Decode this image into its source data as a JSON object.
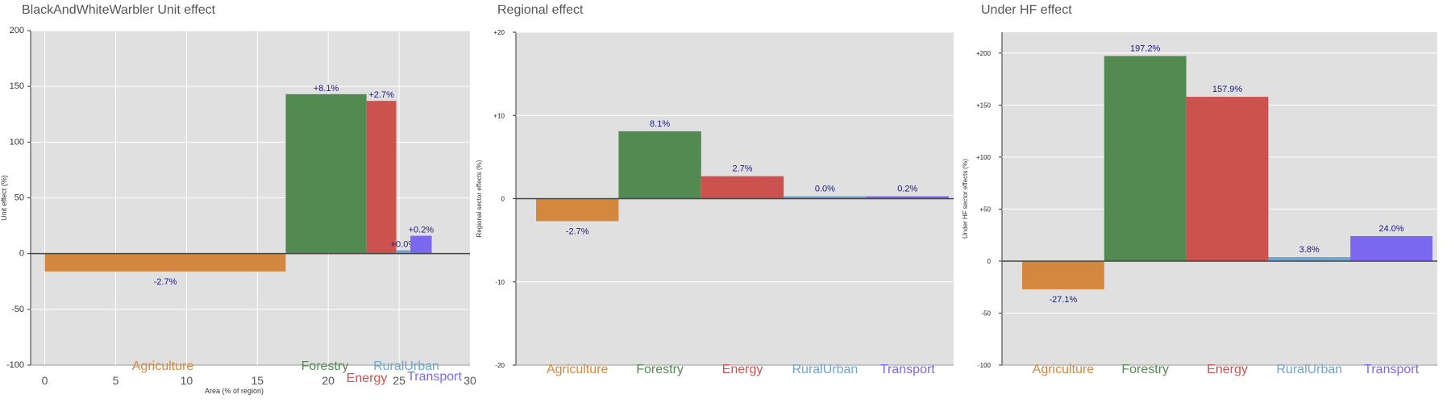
{
  "panels": {
    "unit": {
      "title": "BlackAndWhiteWarbler Unit effect"
    },
    "regional": {
      "title": "Regional effect"
    },
    "underhf": {
      "title": "Under HF effect"
    }
  },
  "colors": {
    "Agriculture": "#d4883f",
    "Forestry": "#528a52",
    "Energy": "#cc5250",
    "RuralUrban": "#6fa4d0",
    "Transport": "#7b68ee",
    "panel_bg": "#e0e0e0",
    "grid": "#ffffff",
    "value_label": "#1a1a7a",
    "axis_text": "#555555"
  },
  "chart_data": [
    {
      "type": "bar",
      "title": "BlackAndWhiteWarbler Unit effect",
      "xlabel": "Area (% of region)",
      "ylabel": "Unit effect (%)",
      "xlim": [
        -1,
        30
      ],
      "ylim": [
        -100,
        200
      ],
      "xticks": [
        0,
        5,
        10,
        15,
        20,
        25,
        30
      ],
      "yticks": [
        -100,
        -50,
        0,
        50,
        100,
        150,
        200
      ],
      "ytick_labels": [
        "-100",
        "-50",
        "0",
        "50",
        "100",
        "150",
        "200"
      ],
      "grid": true,
      "bars": [
        {
          "sector": "Agriculture",
          "x0": 0,
          "x1": 17,
          "value": -16,
          "label": "-2.7%"
        },
        {
          "sector": "Forestry",
          "x0": 17,
          "x1": 22.7,
          "value": 143,
          "label": "+8.1%"
        },
        {
          "sector": "Energy",
          "x0": 22.7,
          "x1": 24.8,
          "value": 137,
          "label": "+2.7%"
        },
        {
          "sector": "RuralUrban",
          "x0": 24.8,
          "x1": 25.8,
          "value": 3,
          "label": "+0.0%"
        },
        {
          "sector": "Transport",
          "x0": 25.8,
          "x1": 27.3,
          "value": 16,
          "label": "+0.2%"
        }
      ],
      "sector_labels": [
        "Agriculture",
        "Forestry",
        "Energy",
        "RuralUrban",
        "Transport"
      ]
    },
    {
      "type": "bar",
      "title": "Regional effect",
      "xlabel": "",
      "ylabel": "Regional sector effects (%)",
      "ylim": [
        -20,
        20
      ],
      "yticks": [
        -20,
        -10,
        0,
        10,
        20
      ],
      "ytick_labels": [
        "-20",
        "-10",
        "0",
        "+10",
        "+20"
      ],
      "grid": true,
      "categories": [
        "Agriculture",
        "Forestry",
        "Energy",
        "RuralUrban",
        "Transport"
      ],
      "values": [
        -2.7,
        8.1,
        2.7,
        0.0,
        0.2
      ],
      "labels": [
        "-2.7%",
        "8.1%",
        "2.7%",
        "0.0%",
        "0.2%"
      ]
    },
    {
      "type": "bar",
      "title": "Under HF effect",
      "xlabel": "",
      "ylabel": "Under HF sector effects (%)",
      "ylim": [
        -100,
        220
      ],
      "yticks": [
        -100,
        -50,
        0,
        50,
        100,
        150,
        200
      ],
      "ytick_labels": [
        "-100",
        "-50",
        "0",
        "+50",
        "+100",
        "+150",
        "+200"
      ],
      "grid": true,
      "categories": [
        "Agriculture",
        "Forestry",
        "Energy",
        "RuralUrban",
        "Transport"
      ],
      "values": [
        -27.1,
        197.2,
        157.9,
        3.8,
        24.0
      ],
      "labels": [
        "-27.1%",
        "197.2%",
        "157.9%",
        "3.8%",
        "24.0%"
      ]
    }
  ]
}
